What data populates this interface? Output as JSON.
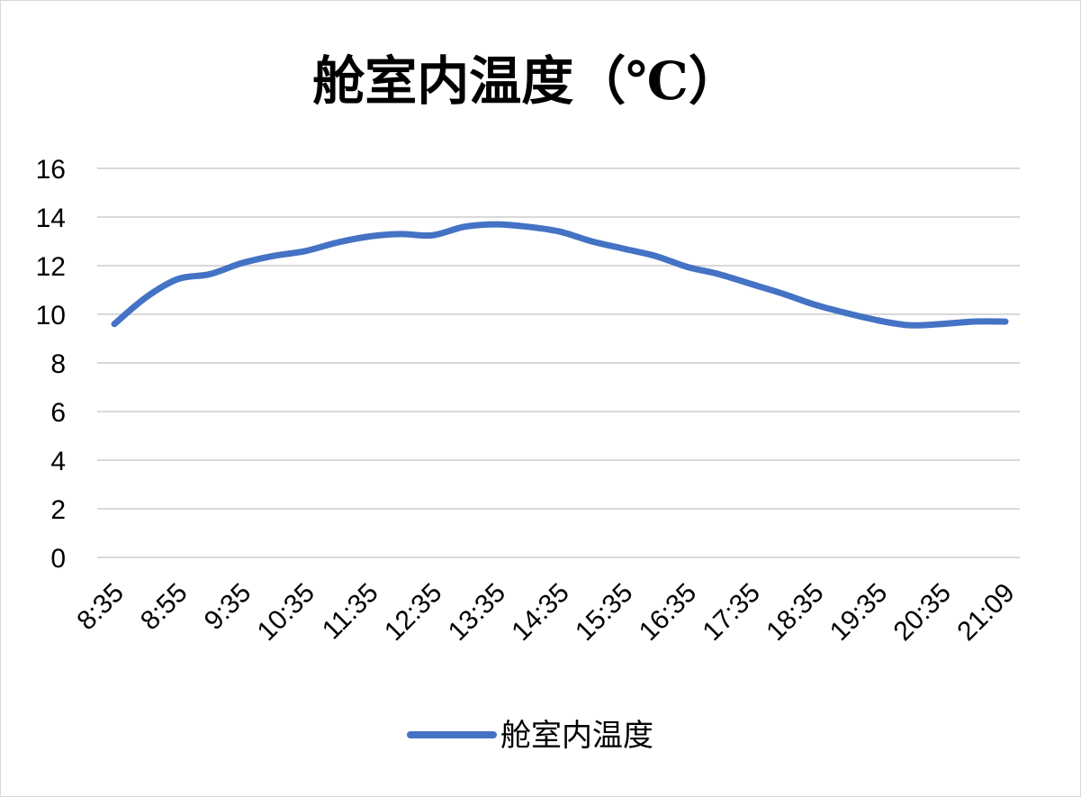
{
  "chart_data": {
    "type": "line",
    "title": "舱室内温度（℃）",
    "xlabel": "",
    "ylabel": "",
    "ylim": [
      0,
      16
    ],
    "yticks": [
      0,
      2,
      4,
      6,
      8,
      10,
      12,
      14,
      16
    ],
    "grid": true,
    "legend_position": "bottom",
    "x_tick_labels": [
      "8:35",
      "8:55",
      "9:35",
      "10:35",
      "11:35",
      "12:35",
      "13:35",
      "14:35",
      "15:35",
      "16:35",
      "17:35",
      "18:35",
      "19:35",
      "20:35",
      "21:09"
    ],
    "series": [
      {
        "name": "舱室内温度",
        "color": "#4472C4",
        "values": [
          9.6,
          10.7,
          11.45,
          11.65,
          12.1,
          12.4,
          12.6,
          12.95,
          13.2,
          13.3,
          13.25,
          13.6,
          13.7,
          13.6,
          13.4,
          13.0,
          12.7,
          12.4,
          11.95,
          11.65,
          11.25,
          10.85,
          10.4,
          10.05,
          9.75,
          9.55,
          9.6,
          9.7,
          9.7
        ]
      }
    ]
  }
}
